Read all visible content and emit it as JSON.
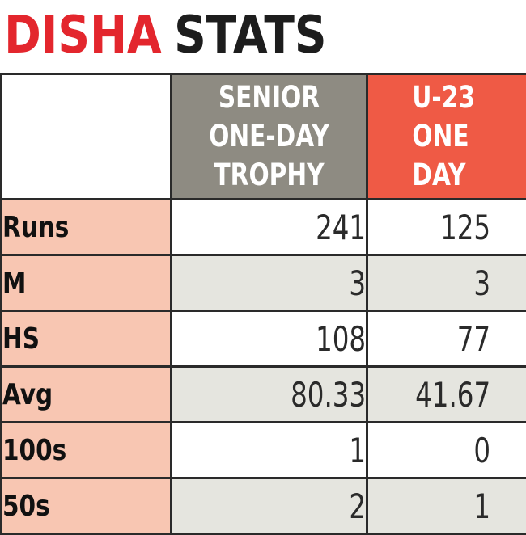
{
  "title": {
    "part1": "DISHA",
    "part2": "STATS"
  },
  "colors": {
    "title_red": "#e3262d",
    "senior_header": "#8e8b82",
    "u23_header": "#ef5a45",
    "label_bg": "#f8c6b2",
    "alt_row_bg": "#e5e5df"
  },
  "columns": [
    {
      "lines": [
        "SENIOR",
        "ONE-DAY",
        "TROPHY"
      ]
    },
    {
      "lines": [
        "U-23",
        "ONE",
        "DAY"
      ]
    }
  ],
  "rows": [
    {
      "label": "Runs",
      "values": [
        "241",
        "125"
      ]
    },
    {
      "label": "M",
      "values": [
        "3",
        "3"
      ]
    },
    {
      "label": "HS",
      "values": [
        "108",
        "77"
      ]
    },
    {
      "label": "Avg",
      "values": [
        "80.33",
        "41.67"
      ]
    },
    {
      "label": "100s",
      "values": [
        "1",
        "0"
      ]
    },
    {
      "label": "50s",
      "values": [
        "2",
        "1"
      ]
    }
  ]
}
